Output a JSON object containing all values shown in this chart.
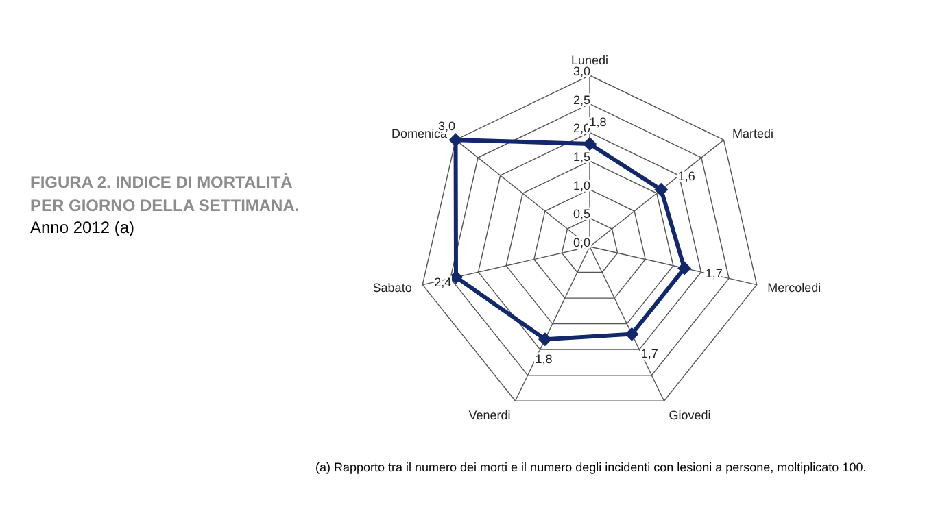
{
  "chart_data": {
    "type": "radar",
    "title": "FIGURA 2. INDICE DI MORTALITÀ PER GIORNO DELLA SETTIMANA.",
    "subtitle": "Anno 2012 (a)",
    "categories": [
      "Lunedi",
      "Martedi",
      "Mercoledi",
      "Giovedi",
      "Venerdi",
      "Sabato",
      "Domenica"
    ],
    "series": [
      {
        "color": "#13286b",
        "values": [
          1.8,
          1.6,
          1.7,
          1.7,
          1.8,
          2.4,
          3.0
        ],
        "value_labels": [
          "1,8",
          "1,6",
          "1,7",
          "1,7",
          "1,8",
          "2,4",
          "3,0"
        ]
      }
    ],
    "ylim": [
      0,
      3
    ],
    "yticks": [
      {
        "value": 0,
        "label": "0,0"
      },
      {
        "value": 0.5,
        "label": "0,5"
      },
      {
        "value": 1,
        "label": "1,0"
      },
      {
        "value": 1.5,
        "label": "1,5"
      },
      {
        "value": 2,
        "label": "2,0"
      },
      {
        "value": 2.5,
        "label": "2,5"
      },
      {
        "value": 3,
        "label": "3,0"
      }
    ],
    "grid": true,
    "legend": false,
    "marker": "diamond",
    "line_style": "solid",
    "annotations": [
      "(a) Rapporto tra il numero dei morti e il numero degli incidenti con lesioni a persone, moltiplicato 100."
    ]
  }
}
